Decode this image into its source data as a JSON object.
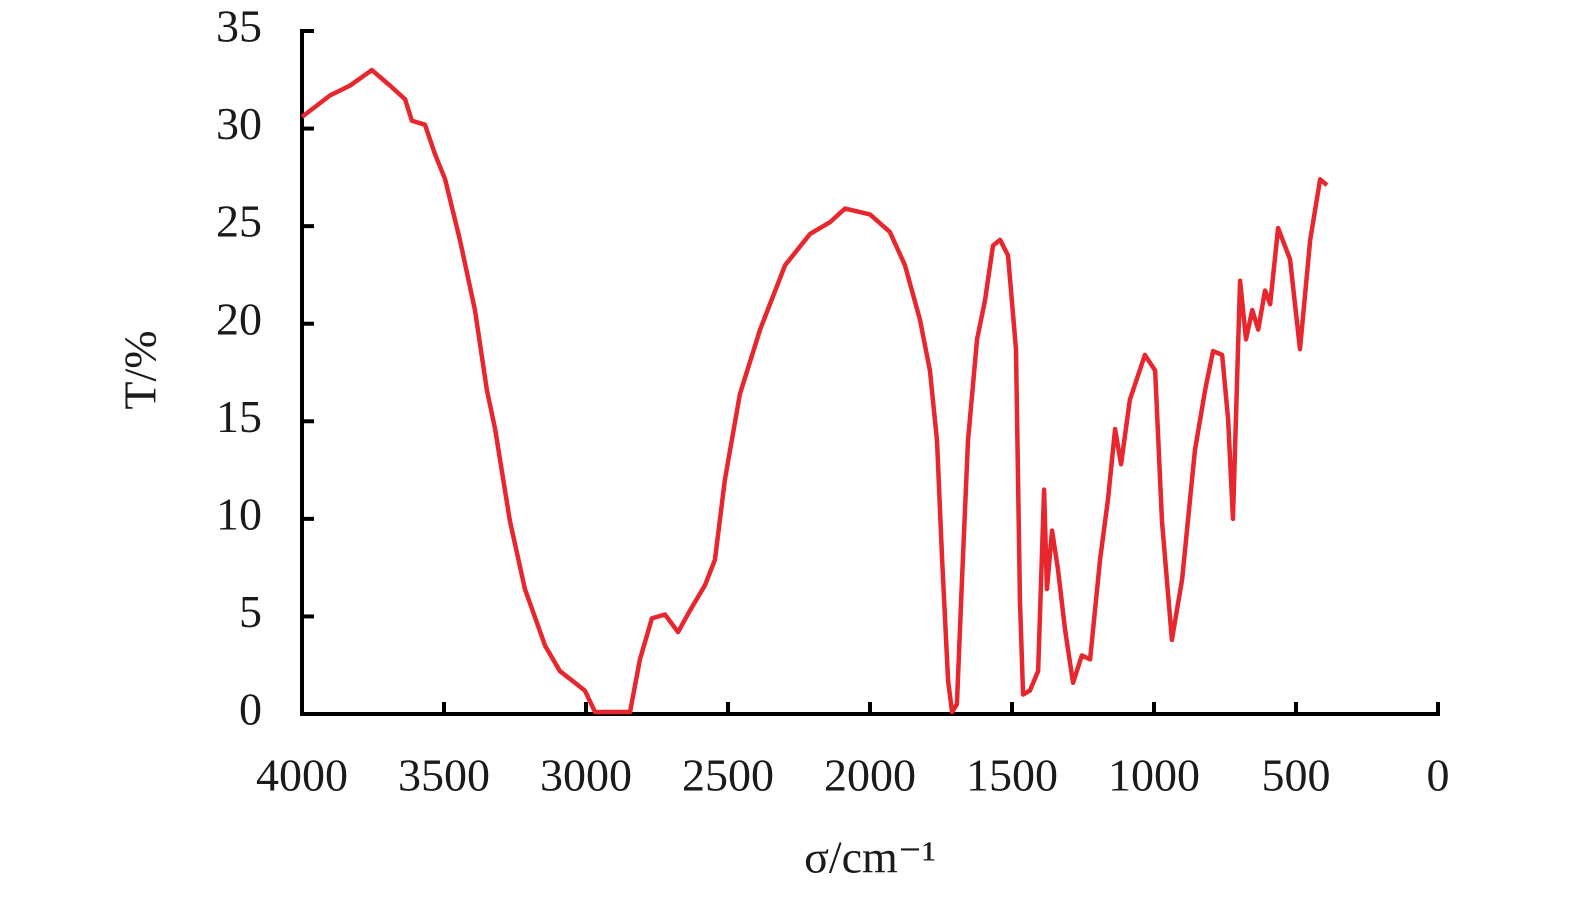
{
  "chart_data": {
    "type": "line",
    "xlabel": "σ/cm⁻¹",
    "ylabel": "T/%",
    "xlim": [
      4000,
      0
    ],
    "ylim": [
      0,
      35
    ],
    "xticks": [
      4000,
      3500,
      3000,
      2500,
      2000,
      1500,
      1000,
      500,
      0
    ],
    "yticks": [
      0,
      5,
      10,
      15,
      20,
      25,
      30,
      35
    ],
    "series": [
      {
        "color": "#e8262d",
        "x": [
          4000,
          3901,
          3831,
          3754,
          3690,
          3637,
          3613,
          3567,
          3532,
          3496,
          3444,
          3391,
          3349,
          3320,
          3268,
          3215,
          3144,
          3092,
          3039,
          3004,
          2968,
          2880,
          2845,
          2810,
          2768,
          2722,
          2676,
          2634,
          2581,
          2546,
          2511,
          2458,
          2387,
          2299,
          2211,
          2141,
          2088,
          2000,
          1930,
          1877,
          1824,
          1789,
          1764,
          1746,
          1725,
          1711,
          1694,
          1676,
          1655,
          1623,
          1595,
          1567,
          1542,
          1514,
          1486,
          1472,
          1461,
          1437,
          1408,
          1387,
          1377,
          1359,
          1338,
          1313,
          1285,
          1254,
          1225,
          1190,
          1162,
          1137,
          1116,
          1085,
          1032,
          996,
          972,
          937,
          901,
          856,
          820,
          792,
          760,
          739,
          722,
          697,
          676,
          654,
          633,
          609,
          591,
          563,
          521,
          486,
          450,
          415,
          391
        ],
        "values": [
          30.6,
          31.7,
          32.2,
          33.0,
          32.2,
          31.5,
          30.4,
          30.2,
          28.7,
          27.4,
          24.3,
          20.7,
          16.6,
          14.6,
          9.9,
          6.4,
          3.5,
          2.2,
          1.6,
          1.2,
          0.1,
          0.1,
          0.1,
          2.8,
          4.9,
          5.1,
          4.2,
          5.3,
          6.6,
          7.9,
          12.0,
          16.4,
          19.7,
          23.0,
          24.6,
          25.2,
          25.9,
          25.6,
          24.7,
          23.0,
          20.2,
          17.6,
          14.0,
          7.9,
          1.7,
          0.1,
          0.5,
          6.9,
          14.0,
          19.2,
          21.2,
          24.0,
          24.3,
          23.5,
          18.7,
          5.8,
          1.0,
          1.2,
          2.2,
          11.5,
          6.4,
          9.4,
          7.4,
          4.3,
          1.6,
          3.0,
          2.8,
          7.9,
          11.0,
          14.6,
          12.8,
          16.1,
          18.4,
          17.6,
          9.9,
          3.8,
          6.9,
          13.5,
          16.6,
          18.6,
          18.4,
          15.1,
          10.0,
          22.2,
          19.2,
          20.7,
          19.7,
          21.7,
          21.0,
          24.9,
          23.3,
          18.7,
          24.3,
          27.4,
          27.1
        ]
      }
    ]
  }
}
